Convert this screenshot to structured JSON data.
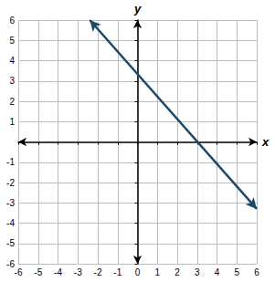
{
  "chart_data": {
    "type": "line",
    "x": [
      -2.4,
      6
    ],
    "values": [
      6,
      -3.3
    ],
    "color": "#1b4a68",
    "marker": "arrow",
    "x_label": "x",
    "y_label": "y",
    "xlim": [
      -6,
      6
    ],
    "ylim": [
      -6,
      6
    ],
    "xticks": [
      -6,
      -5,
      -4,
      -3,
      -2,
      -1,
      0,
      1,
      2,
      3,
      4,
      5,
      6
    ],
    "yticks": [
      -6,
      -5,
      -4,
      -3,
      -2,
      -1,
      1,
      2,
      3,
      4,
      5,
      6
    ],
    "grid": true
  }
}
